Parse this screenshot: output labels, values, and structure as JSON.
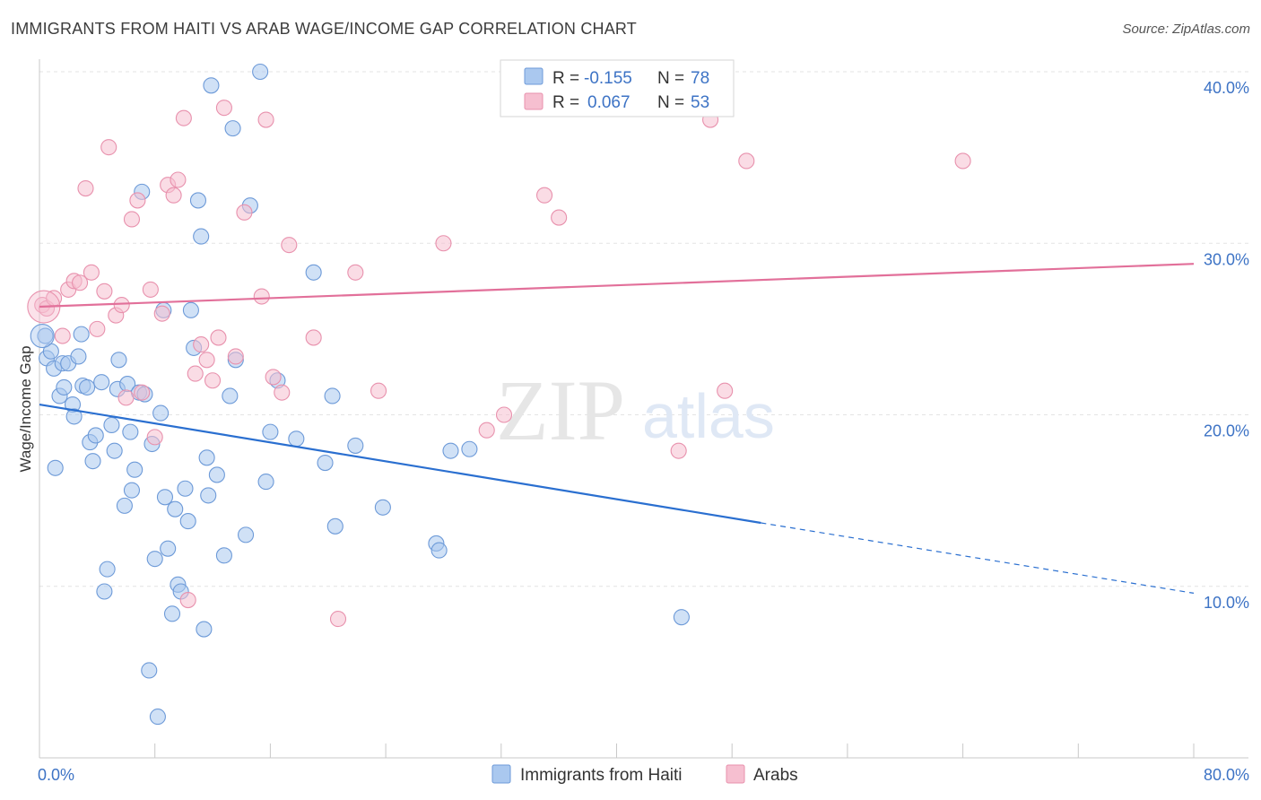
{
  "title": "IMMIGRANTS FROM HAITI VS ARAB WAGE/INCOME GAP CORRELATION CHART",
  "source": "Source: ZipAtlas.com",
  "watermark": {
    "zip": "ZIP",
    "atlas": "atlas"
  },
  "colors": {
    "blue_fill": "#aac8ef",
    "blue_stroke": "#6d9ad8",
    "blue_line": "#2a6fd0",
    "pink_fill": "#f6bfd0",
    "pink_stroke": "#e891ad",
    "pink_line": "#e2709a",
    "tick_text": "#3d73c5",
    "grid": "#e3e3e3"
  },
  "legend": {
    "r_label": "R =",
    "n_label": "N =",
    "series1": {
      "r": "-0.155",
      "n": "78"
    },
    "series2": {
      "r": "0.067",
      "n": "53"
    }
  },
  "chart_data": {
    "type": "scatter",
    "title": "IMMIGRANTS FROM HAITI VS ARAB WAGE/INCOME GAP CORRELATION CHART",
    "xlabel": "",
    "ylabel": "Wage/Income Gap",
    "xlim": [
      0,
      80
    ],
    "ylim": [
      0,
      40
    ],
    "x_tick_labels": [
      {
        "value": 0,
        "label": "0.0%"
      },
      {
        "value": 80,
        "label": "80.0%"
      }
    ],
    "y_tick_labels": [
      {
        "value": 10,
        "label": "10.0%"
      },
      {
        "value": 20,
        "label": "20.0%"
      },
      {
        "value": 30,
        "label": "30.0%"
      },
      {
        "value": 40,
        "label": "40.0%"
      }
    ],
    "grid": true,
    "legend_position": "top-center",
    "series": [
      {
        "name": "Immigrants from Haiti",
        "color": "#aac8ef",
        "trend": {
          "x_solid": [
            0,
            50
          ],
          "y_solid": [
            20.6,
            13.7
          ],
          "x_dashed": [
            50,
            80
          ],
          "y_dashed": [
            13.7,
            9.6
          ]
        },
        "points": [
          [
            0.4,
            24.6
          ],
          [
            0.5,
            23.3
          ],
          [
            0.8,
            23.7
          ],
          [
            1.0,
            22.7
          ],
          [
            1.1,
            16.9
          ],
          [
            1.4,
            21.1
          ],
          [
            1.6,
            23.0
          ],
          [
            1.7,
            21.6
          ],
          [
            2.0,
            23.0
          ],
          [
            2.3,
            20.6
          ],
          [
            2.4,
            19.9
          ],
          [
            2.7,
            23.4
          ],
          [
            2.9,
            24.7
          ],
          [
            3.0,
            21.7
          ],
          [
            3.3,
            21.6
          ],
          [
            3.5,
            18.4
          ],
          [
            3.7,
            17.3
          ],
          [
            3.9,
            18.8
          ],
          [
            4.3,
            21.9
          ],
          [
            4.5,
            9.7
          ],
          [
            4.7,
            11.0
          ],
          [
            5.0,
            19.4
          ],
          [
            5.2,
            17.9
          ],
          [
            5.4,
            21.5
          ],
          [
            5.5,
            23.2
          ],
          [
            5.9,
            14.7
          ],
          [
            6.1,
            21.8
          ],
          [
            6.3,
            19.0
          ],
          [
            6.4,
            15.6
          ],
          [
            6.6,
            16.8
          ],
          [
            6.9,
            21.3
          ],
          [
            7.1,
            33.0
          ],
          [
            7.3,
            21.2
          ],
          [
            7.6,
            5.1
          ],
          [
            7.8,
            18.3
          ],
          [
            8.0,
            11.6
          ],
          [
            8.2,
            2.4
          ],
          [
            8.4,
            20.1
          ],
          [
            8.6,
            26.1
          ],
          [
            8.7,
            15.2
          ],
          [
            8.9,
            12.2
          ],
          [
            9.2,
            8.4
          ],
          [
            9.4,
            14.5
          ],
          [
            9.6,
            10.1
          ],
          [
            9.8,
            9.7
          ],
          [
            10.1,
            15.7
          ],
          [
            10.3,
            13.8
          ],
          [
            10.5,
            26.1
          ],
          [
            10.7,
            23.9
          ],
          [
            11.0,
            32.5
          ],
          [
            11.2,
            30.4
          ],
          [
            11.4,
            7.5
          ],
          [
            11.6,
            17.5
          ],
          [
            11.7,
            15.3
          ],
          [
            11.9,
            39.2
          ],
          [
            12.3,
            16.5
          ],
          [
            12.8,
            11.8
          ],
          [
            13.2,
            21.1
          ],
          [
            13.4,
            36.7
          ],
          [
            13.6,
            23.2
          ],
          [
            14.3,
            13.0
          ],
          [
            14.6,
            32.2
          ],
          [
            15.3,
            40.0
          ],
          [
            15.7,
            16.1
          ],
          [
            16.0,
            19.0
          ],
          [
            16.5,
            22.0
          ],
          [
            17.8,
            18.6
          ],
          [
            19.0,
            28.3
          ],
          [
            19.8,
            17.2
          ],
          [
            20.3,
            21.1
          ],
          [
            20.5,
            13.5
          ],
          [
            21.9,
            18.2
          ],
          [
            23.8,
            14.6
          ],
          [
            27.5,
            12.5
          ],
          [
            27.7,
            12.1
          ],
          [
            28.5,
            17.9
          ],
          [
            29.8,
            18.0
          ],
          [
            44.5,
            8.2
          ]
        ]
      },
      {
        "name": "Arabs",
        "color": "#f6bfd0",
        "trend": {
          "x_solid": [
            0,
            80
          ],
          "y_solid": [
            26.3,
            28.8
          ]
        },
        "points": [
          [
            0.2,
            26.4
          ],
          [
            0.5,
            26.2
          ],
          [
            1.0,
            26.8
          ],
          [
            1.6,
            24.6
          ],
          [
            2.0,
            27.3
          ],
          [
            2.4,
            27.8
          ],
          [
            2.8,
            27.7
          ],
          [
            3.2,
            33.2
          ],
          [
            3.6,
            28.3
          ],
          [
            4.0,
            25.0
          ],
          [
            4.5,
            27.2
          ],
          [
            4.8,
            35.6
          ],
          [
            5.3,
            25.8
          ],
          [
            5.7,
            26.4
          ],
          [
            6.0,
            21.0
          ],
          [
            6.4,
            31.4
          ],
          [
            6.8,
            32.5
          ],
          [
            7.1,
            21.3
          ],
          [
            7.7,
            27.3
          ],
          [
            8.0,
            18.7
          ],
          [
            8.5,
            25.9
          ],
          [
            8.9,
            33.4
          ],
          [
            9.3,
            32.8
          ],
          [
            9.6,
            33.7
          ],
          [
            10.0,
            37.3
          ],
          [
            10.3,
            9.2
          ],
          [
            10.8,
            22.4
          ],
          [
            11.2,
            24.1
          ],
          [
            11.6,
            23.2
          ],
          [
            12.0,
            22.0
          ],
          [
            12.4,
            24.5
          ],
          [
            12.8,
            37.9
          ],
          [
            13.6,
            23.4
          ],
          [
            14.2,
            31.8
          ],
          [
            15.7,
            37.2
          ],
          [
            15.4,
            26.9
          ],
          [
            16.2,
            22.2
          ],
          [
            16.8,
            21.3
          ],
          [
            17.3,
            29.9
          ],
          [
            19.0,
            24.5
          ],
          [
            20.7,
            8.1
          ],
          [
            21.9,
            28.3
          ],
          [
            23.5,
            21.4
          ],
          [
            28.0,
            30.0
          ],
          [
            31.0,
            19.1
          ],
          [
            32.2,
            20.0
          ],
          [
            35.0,
            32.8
          ],
          [
            36.0,
            31.5
          ],
          [
            46.5,
            37.2
          ],
          [
            44.3,
            17.9
          ],
          [
            47.5,
            21.4
          ],
          [
            49.0,
            34.8
          ],
          [
            64.0,
            34.8
          ]
        ]
      }
    ]
  }
}
